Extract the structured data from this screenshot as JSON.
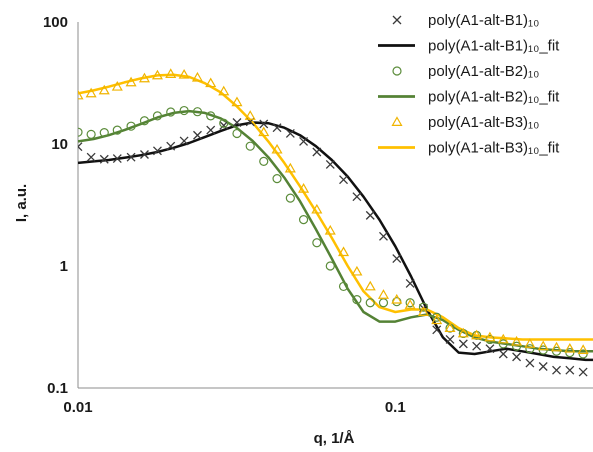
{
  "chart_data": {
    "type": "scatter",
    "xlabel": "q, 1/Å",
    "ylabel": "I, a.u.",
    "xscale": "log",
    "yscale": "log",
    "xlim": [
      0.01,
      0.42
    ],
    "ylim": [
      0.1,
      100
    ],
    "x_ticks": [
      0.01,
      0.1
    ],
    "x_tick_labels": [
      "0.01",
      "0.1"
    ],
    "y_ticks": [
      0.1,
      1,
      10,
      100
    ],
    "y_tick_labels": [
      "0.1",
      "1",
      "10",
      "100"
    ],
    "grid": false,
    "legend_position": "top-right",
    "series": [
      {
        "name": "poly(A1-alt-B1)₁₀",
        "kind": "markers",
        "marker": "x",
        "color": "#3a3a3a",
        "x": [
          0.01,
          0.011,
          0.0121,
          0.0133,
          0.0147,
          0.0162,
          0.0178,
          0.0196,
          0.0216,
          0.0238,
          0.0262,
          0.0288,
          0.0317,
          0.0349,
          0.0385,
          0.0424,
          0.0467,
          0.0514,
          0.0566,
          0.0624,
          0.0687,
          0.0757,
          0.0834,
          0.0918,
          0.1011,
          0.1114,
          0.1227,
          0.1351,
          0.1488,
          0.1639,
          0.1805,
          0.1988,
          0.219,
          0.2412,
          0.2657,
          0.2926,
          0.3223,
          0.355,
          0.391
        ],
        "y": [
          9.5,
          7.8,
          7.5,
          7.6,
          7.8,
          8.2,
          8.8,
          9.6,
          10.6,
          11.8,
          13.0,
          14.2,
          15.0,
          15.2,
          14.6,
          13.6,
          12.2,
          10.5,
          8.6,
          6.8,
          5.1,
          3.7,
          2.6,
          1.75,
          1.15,
          0.72,
          0.45,
          0.3,
          0.25,
          0.23,
          0.22,
          0.21,
          0.19,
          0.18,
          0.16,
          0.15,
          0.14,
          0.14,
          0.135
        ]
      },
      {
        "name": "poly(A1-alt-B1)₁₀_fit",
        "kind": "line",
        "color": "#111111",
        "x": [
          0.01,
          0.0112,
          0.0125,
          0.014,
          0.0158,
          0.0178,
          0.02,
          0.0224,
          0.0251,
          0.0282,
          0.0316,
          0.0355,
          0.0398,
          0.0447,
          0.0501,
          0.0562,
          0.0631,
          0.0708,
          0.0794,
          0.0891,
          0.1,
          0.1122,
          0.1259,
          0.1413,
          0.1585,
          0.1778,
          0.1995,
          0.2239,
          0.2512,
          0.2818,
          0.3162,
          0.3548,
          0.3981,
          0.42
        ],
        "y": [
          7.0,
          7.2,
          7.4,
          7.7,
          8.1,
          8.6,
          9.3,
          10.2,
          11.4,
          12.8,
          14.2,
          15.0,
          14.8,
          13.6,
          11.8,
          9.6,
          7.4,
          5.4,
          3.7,
          2.4,
          1.45,
          0.82,
          0.44,
          0.26,
          0.195,
          0.19,
          0.2,
          0.21,
          0.2,
          0.19,
          0.18,
          0.175,
          0.17,
          0.17
        ]
      },
      {
        "name": "poly(A1-alt-B2)₁₀",
        "kind": "markers",
        "marker": "circle",
        "color": "#5b8c3a",
        "x": [
          0.01,
          0.011,
          0.0121,
          0.0133,
          0.0147,
          0.0162,
          0.0178,
          0.0196,
          0.0216,
          0.0238,
          0.0262,
          0.0288,
          0.0317,
          0.0349,
          0.0385,
          0.0424,
          0.0467,
          0.0514,
          0.0566,
          0.0624,
          0.0687,
          0.0757,
          0.0834,
          0.0918,
          0.1011,
          0.1114,
          0.1227,
          0.1351,
          0.1488,
          0.1639,
          0.1805,
          0.1988,
          0.219,
          0.2412,
          0.2657,
          0.2926,
          0.3223,
          0.355,
          0.391
        ],
        "y": [
          12.5,
          12.0,
          12.4,
          13.0,
          14.0,
          15.5,
          17.0,
          18.3,
          18.8,
          18.4,
          17.0,
          14.8,
          12.2,
          9.6,
          7.2,
          5.2,
          3.6,
          2.4,
          1.55,
          1.0,
          0.68,
          0.53,
          0.5,
          0.5,
          0.51,
          0.5,
          0.46,
          0.38,
          0.31,
          0.28,
          0.27,
          0.25,
          0.23,
          0.22,
          0.21,
          0.205,
          0.2,
          0.195,
          0.19
        ]
      },
      {
        "name": "poly(A1-alt-B2)₁₀_fit",
        "kind": "line",
        "color": "#548235",
        "x": [
          0.01,
          0.0112,
          0.0125,
          0.014,
          0.0158,
          0.0178,
          0.02,
          0.0224,
          0.0251,
          0.0282,
          0.0316,
          0.0355,
          0.0398,
          0.0447,
          0.0501,
          0.0562,
          0.0631,
          0.0708,
          0.0794,
          0.0891,
          0.1,
          0.1122,
          0.1259,
          0.1413,
          0.1585,
          0.1778,
          0.1995,
          0.2239,
          0.2512,
          0.2818,
          0.3162,
          0.3548,
          0.3981,
          0.42
        ],
        "y": [
          10.5,
          11.0,
          11.8,
          13.0,
          14.6,
          16.5,
          18.0,
          18.6,
          18.0,
          16.2,
          13.6,
          10.6,
          7.8,
          5.3,
          3.4,
          2.0,
          1.15,
          0.65,
          0.42,
          0.35,
          0.35,
          0.38,
          0.4,
          0.36,
          0.3,
          0.26,
          0.24,
          0.23,
          0.22,
          0.21,
          0.205,
          0.2,
          0.2,
          0.2
        ]
      },
      {
        "name": "poly(A1-alt-B3)₁₀",
        "kind": "markers",
        "marker": "triangle",
        "color": "#f0b400",
        "x": [
          0.01,
          0.011,
          0.0121,
          0.0133,
          0.0147,
          0.0162,
          0.0178,
          0.0196,
          0.0216,
          0.0238,
          0.0262,
          0.0288,
          0.0317,
          0.0349,
          0.0385,
          0.0424,
          0.0467,
          0.0514,
          0.0566,
          0.0624,
          0.0687,
          0.0757,
          0.0834,
          0.0918,
          0.1011,
          0.1114,
          0.1227,
          0.1351,
          0.1488,
          0.1639,
          0.1805,
          0.1988,
          0.219,
          0.2412,
          0.2657,
          0.2926,
          0.3223,
          0.355,
          0.391
        ],
        "y": [
          25.0,
          26.0,
          27.5,
          29.5,
          32.0,
          34.5,
          36.5,
          37.5,
          37.0,
          35.0,
          31.5,
          27.0,
          22.0,
          17.0,
          12.5,
          9.0,
          6.3,
          4.3,
          2.9,
          1.95,
          1.3,
          0.9,
          0.68,
          0.58,
          0.53,
          0.48,
          0.42,
          0.36,
          0.31,
          0.28,
          0.27,
          0.26,
          0.25,
          0.24,
          0.23,
          0.22,
          0.215,
          0.21,
          0.205
        ]
      },
      {
        "name": "poly(A1-alt-B3)₁₀_fit",
        "kind": "line",
        "color": "#ffc000",
        "x": [
          0.01,
          0.0112,
          0.0125,
          0.014,
          0.0158,
          0.0178,
          0.02,
          0.0224,
          0.0251,
          0.0282,
          0.0316,
          0.0355,
          0.0398,
          0.0447,
          0.0501,
          0.0562,
          0.0631,
          0.0708,
          0.0794,
          0.0891,
          0.1,
          0.1122,
          0.1259,
          0.1413,
          0.1585,
          0.1778,
          0.1995,
          0.2239,
          0.2512,
          0.2818,
          0.3162,
          0.3548,
          0.3981,
          0.42
        ],
        "y": [
          26.0,
          27.5,
          29.5,
          32.0,
          34.5,
          36.5,
          37.0,
          35.5,
          31.5,
          26.5,
          20.5,
          15.0,
          10.5,
          7.0,
          4.5,
          2.8,
          1.7,
          1.0,
          0.62,
          0.46,
          0.42,
          0.44,
          0.44,
          0.38,
          0.31,
          0.27,
          0.26,
          0.255,
          0.25,
          0.25,
          0.25,
          0.25,
          0.25,
          0.25
        ]
      }
    ]
  }
}
